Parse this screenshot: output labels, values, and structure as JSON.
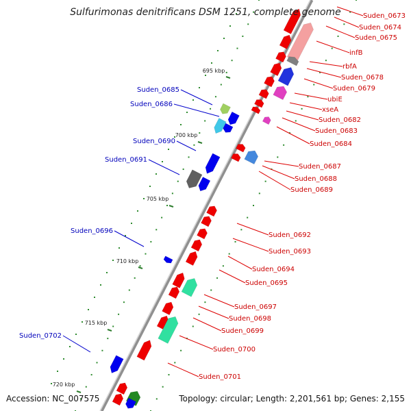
{
  "title": "Sulfurimonas denitrificans DSM 1251, complete genome",
  "accession": "Accession: NC_007575",
  "topology": "Topology: circular; Length: 2,201,561 bp; Genes: 2,155",
  "colors": {
    "forward_label": "#cc0000",
    "reverse_label": "#0000bb",
    "backbone": "#808080",
    "tick": "#3a8a3a"
  },
  "kbp_ticks": [
    "695 kbp",
    "700 kbp",
    "705 kbp",
    "710 kbp",
    "715 kbp",
    "720 kbp"
  ],
  "forward_labels": [
    "Suden_0673",
    "Suden_0674",
    "Suden_0675",
    "infB",
    "rbfA",
    "Suden_0678",
    "Suden_0679",
    "ubiE",
    "xseA",
    "Suden_0682",
    "Suden_0683",
    "Suden_0684",
    "Suden_0687",
    "Suden_0688",
    "Suden_0689",
    "Suden_0692",
    "Suden_0693",
    "Suden_0694",
    "Suden_0695",
    "Suden_0697",
    "Suden_0698",
    "Suden_0699",
    "Suden_0700",
    "Suden_0701"
  ],
  "reverse_labels": [
    "Suden_0685",
    "Suden_0686",
    "Suden_0690",
    "Suden_0691",
    "Suden_0696",
    "Suden_0702"
  ]
}
